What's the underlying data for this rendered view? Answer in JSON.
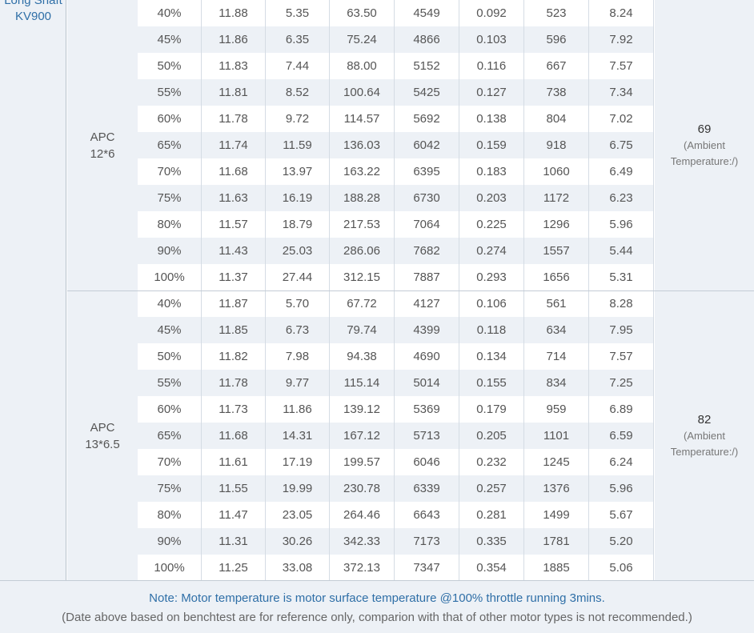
{
  "motor": {
    "line1": "Long Shaft",
    "line2": "KV900"
  },
  "groups": [
    {
      "prop_line1": "APC",
      "prop_line2": "12*6",
      "temp_value": "69",
      "temp_note_line1": "(Ambient",
      "temp_note_line2": "Temperature:/)",
      "rows": [
        [
          "40%",
          "11.88",
          "5.35",
          "63.50",
          "4549",
          "0.092",
          "523",
          "8.24"
        ],
        [
          "45%",
          "11.86",
          "6.35",
          "75.24",
          "4866",
          "0.103",
          "596",
          "7.92"
        ],
        [
          "50%",
          "11.83",
          "7.44",
          "88.00",
          "5152",
          "0.116",
          "667",
          "7.57"
        ],
        [
          "55%",
          "11.81",
          "8.52",
          "100.64",
          "5425",
          "0.127",
          "738",
          "7.34"
        ],
        [
          "60%",
          "11.78",
          "9.72",
          "114.57",
          "5692",
          "0.138",
          "804",
          "7.02"
        ],
        [
          "65%",
          "11.74",
          "11.59",
          "136.03",
          "6042",
          "0.159",
          "918",
          "6.75"
        ],
        [
          "70%",
          "11.68",
          "13.97",
          "163.22",
          "6395",
          "0.183",
          "1060",
          "6.49"
        ],
        [
          "75%",
          "11.63",
          "16.19",
          "188.28",
          "6730",
          "0.203",
          "1172",
          "6.23"
        ],
        [
          "80%",
          "11.57",
          "18.79",
          "217.53",
          "7064",
          "0.225",
          "1296",
          "5.96"
        ],
        [
          "90%",
          "11.43",
          "25.03",
          "286.06",
          "7682",
          "0.274",
          "1557",
          "5.44"
        ],
        [
          "100%",
          "11.37",
          "27.44",
          "312.15",
          "7887",
          "0.293",
          "1656",
          "5.31"
        ]
      ]
    },
    {
      "prop_line1": "APC",
      "prop_line2": "13*6.5",
      "temp_value": "82",
      "temp_note_line1": "(Ambient",
      "temp_note_line2": "Temperature:/)",
      "rows": [
        [
          "40%",
          "11.87",
          "5.70",
          "67.72",
          "4127",
          "0.106",
          "561",
          "8.28"
        ],
        [
          "45%",
          "11.85",
          "6.73",
          "79.74",
          "4399",
          "0.118",
          "634",
          "7.95"
        ],
        [
          "50%",
          "11.82",
          "7.98",
          "94.38",
          "4690",
          "0.134",
          "714",
          "7.57"
        ],
        [
          "55%",
          "11.78",
          "9.77",
          "115.14",
          "5014",
          "0.155",
          "834",
          "7.25"
        ],
        [
          "60%",
          "11.73",
          "11.86",
          "139.12",
          "5369",
          "0.179",
          "959",
          "6.89"
        ],
        [
          "65%",
          "11.68",
          "14.31",
          "167.12",
          "5713",
          "0.205",
          "1101",
          "6.59"
        ],
        [
          "70%",
          "11.61",
          "17.19",
          "199.57",
          "6046",
          "0.232",
          "1245",
          "6.24"
        ],
        [
          "75%",
          "11.55",
          "19.99",
          "230.78",
          "6339",
          "0.257",
          "1376",
          "5.96"
        ],
        [
          "80%",
          "11.47",
          "23.05",
          "264.46",
          "6643",
          "0.281",
          "1499",
          "5.67"
        ],
        [
          "90%",
          "11.31",
          "30.26",
          "342.33",
          "7173",
          "0.335",
          "1781",
          "5.20"
        ],
        [
          "100%",
          "11.25",
          "33.08",
          "372.13",
          "7347",
          "0.354",
          "1885",
          "5.06"
        ]
      ]
    }
  ],
  "footer": {
    "note": "Note: Motor temperature is motor surface temperature @100% throttle running 3mins.",
    "disclaimer": "(Date above based on benchtest are for reference only, comparion with that of other motor types is not recommended.)"
  }
}
